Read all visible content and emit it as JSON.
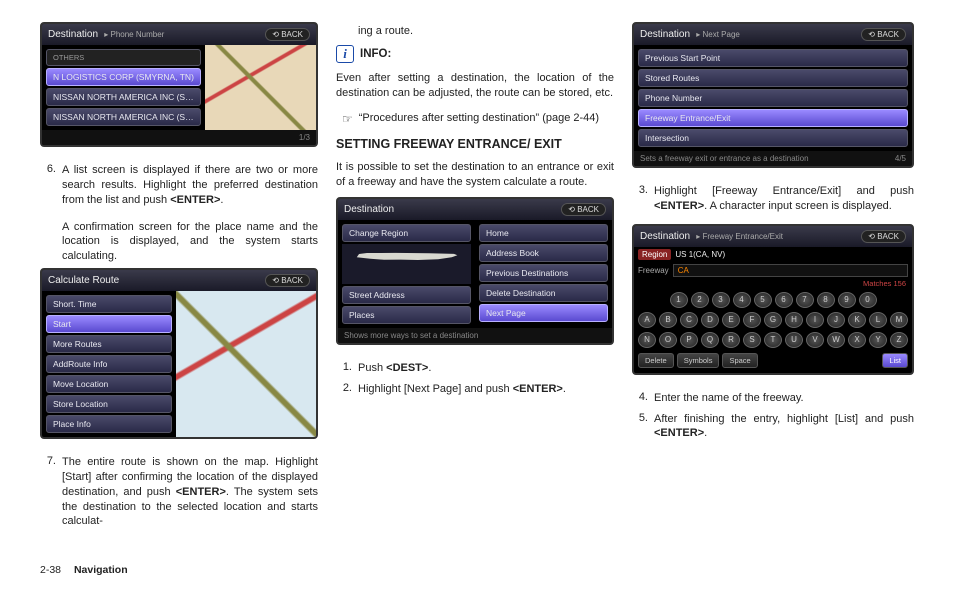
{
  "footer": {
    "page": "2-38",
    "section": "Navigation"
  },
  "col1": {
    "shot1": {
      "title": "Destination",
      "subtitle": "Phone Number",
      "back": "BACK",
      "listHeader": "OTHERS",
      "items": [
        "N LOGISTICS CORP (SMYRNA, TN)",
        "NISSAN NORTH AMERICA INC (S…",
        "NISSAN NORTH AMERICA INC (S…"
      ],
      "selected": 0,
      "foot": "1/3"
    },
    "step6a": "A list screen is displayed if there are two or more search results. Highlight the preferred destination from the list and push <ENTER>.",
    "step6b": "A confirmation screen for the place name and the location is displayed, and the system starts calculating.",
    "shot2": {
      "title": "Calculate Route",
      "back": "BACK",
      "items": [
        "Short. Time",
        "Start",
        "More Routes",
        "AddRoute Info",
        "Move Location",
        "Store Location",
        "Place Info"
      ],
      "selected": 1
    },
    "step7": "The entire route is shown on the map. Highlight [Start] after confirming the location of the displayed destination, and push <ENTER>. The system sets the destination to the selected location and starts calculat-"
  },
  "col2": {
    "cont": "ing a route.",
    "infoLabel": "INFO:",
    "infoBody": "Even after setting a destination, the location of the destination can be adjusted, the route can be stored, etc.",
    "refText": "“Procedures after setting destination” (page 2-44)",
    "heading": "SETTING FREEWAY ENTRANCE/ EXIT",
    "intro": "It is possible to set the destination to an entrance or exit of a freeway and have the system calculate a route.",
    "shot3": {
      "title": "Destination",
      "back": "BACK",
      "left": [
        "Change Region",
        "Street Address",
        "Places"
      ],
      "right": [
        "Home",
        "Address Book",
        "Previous Destinations",
        "Delete Destination",
        "Next Page"
      ],
      "selectedRight": 4,
      "foot": "Shows more ways to set a destination"
    },
    "step1": "Push <DEST>.",
    "step2": "Highlight [Next Page] and push <ENTER>."
  },
  "col3": {
    "shot4": {
      "title": "Destination",
      "subtitle": "Next Page",
      "back": "BACK",
      "items": [
        "Previous Start Point",
        "Stored Routes",
        "Phone Number",
        "Freeway Entrance/Exit",
        "Intersection"
      ],
      "selected": 3,
      "foot": "Sets a freeway exit or entrance as a destination",
      "page": "4/5"
    },
    "step3": "Highlight [Freeway Entrance/Exit] and push <ENTER>. A character input screen is displayed.",
    "shot5": {
      "title": "Destination",
      "subtitle": "Freeway Entrance/Exit",
      "back": "BACK",
      "region": "Region",
      "regionVal": "US 1(CA, NV)",
      "freewayLabel": "Freeway",
      "input": "CA",
      "matchesLabel": "Matches",
      "matches": "156",
      "row1": [
        "1",
        "2",
        "3",
        "4",
        "5",
        "6",
        "7",
        "8",
        "9",
        "0"
      ],
      "row2": [
        "A",
        "B",
        "C",
        "D",
        "E",
        "F",
        "G",
        "H",
        "I",
        "J",
        "K",
        "L",
        "M"
      ],
      "row3": [
        "N",
        "O",
        "P",
        "Q",
        "R",
        "S",
        "T",
        "U",
        "V",
        "W",
        "X",
        "Y",
        "Z"
      ],
      "btns": [
        "Delete",
        "Symbols",
        "Space"
      ],
      "listBtn": "List"
    },
    "step4": "Enter the name of the freeway.",
    "step5": "After finishing the entry, highlight [List] and push <ENTER>."
  }
}
